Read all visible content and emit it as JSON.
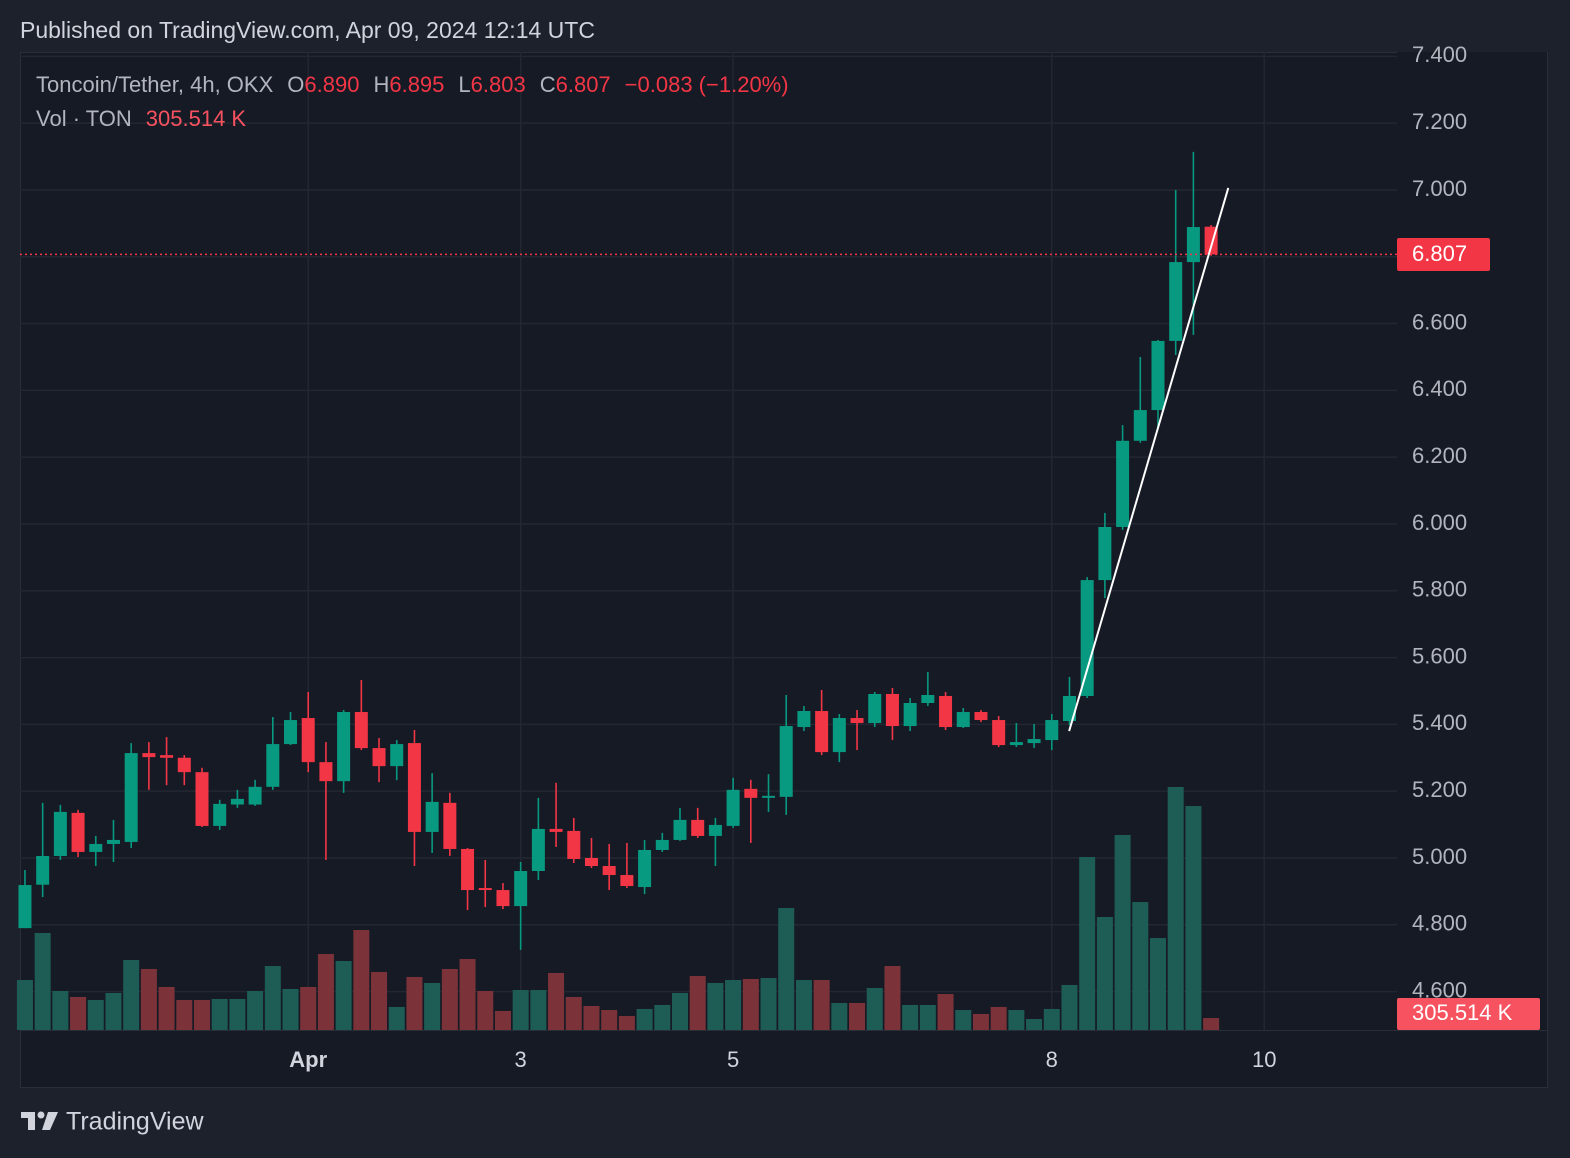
{
  "header": {
    "published": "Published on TradingView.com, Apr 09, 2024 12:14 UTC",
    "symbol": "Toncoin/Tether, 4h, OKX",
    "fields": [
      {
        "key": "O",
        "value": "6.890"
      },
      {
        "key": "H",
        "value": "6.895"
      },
      {
        "key": "L",
        "value": "6.803"
      },
      {
        "key": "C",
        "value": "6.807"
      }
    ],
    "change": "−0.083 (−1.20%)",
    "volume_label": "Vol · TON",
    "volume_value": "305.514 K"
  },
  "footer": {
    "brand": "TradingView"
  },
  "chart_data": {
    "type": "candlestick",
    "up_color": "#089981",
    "down_color": "#f23645",
    "volume_up_color": "#1d5d55",
    "volume_down_color": "#7b3339",
    "grid": true,
    "open": [
      4.79,
      4.92,
      5.006,
      5.135,
      5.018,
      5.042,
      5.048,
      5.314,
      5.308,
      5.3,
      5.257,
      5.096,
      5.16,
      5.16,
      5.213,
      5.341,
      5.419,
      5.287,
      5.23,
      5.437,
      5.329,
      5.275,
      5.344,
      5.078,
      5.165,
      5.027,
      4.91,
      4.904,
      4.856,
      4.961,
      5.087,
      5.081,
      5.0,
      4.976,
      4.949,
      4.913,
      5.024,
      5.054,
      5.114,
      5.066,
      5.096,
      5.207,
      5.18,
      5.183,
      5.392,
      5.44,
      5.317,
      5.419,
      5.404,
      5.491,
      5.395,
      5.464,
      5.485,
      5.392,
      5.437,
      5.413,
      5.338,
      5.344,
      5.353,
      5.41,
      5.485,
      5.832,
      5.991,
      6.249,
      6.341,
      6.548,
      6.784,
      6.89
    ],
    "high": [
      4.964,
      5.165,
      5.159,
      5.144,
      5.066,
      5.114,
      5.344,
      5.347,
      5.362,
      5.308,
      5.27,
      5.174,
      5.204,
      5.234,
      5.422,
      5.437,
      5.497,
      5.347,
      5.443,
      5.533,
      5.359,
      5.353,
      5.383,
      5.254,
      5.195,
      5.03,
      4.994,
      4.925,
      4.988,
      5.18,
      5.225,
      5.12,
      5.06,
      5.042,
      5.045,
      5.054,
      5.075,
      5.15,
      5.15,
      5.12,
      5.24,
      5.234,
      5.251,
      5.488,
      5.455,
      5.503,
      5.431,
      5.443,
      5.497,
      5.509,
      5.479,
      5.557,
      5.497,
      5.449,
      5.443,
      5.425,
      5.404,
      5.401,
      5.431,
      5.542,
      5.841,
      6.033,
      6.296,
      6.5,
      6.551,
      7.0,
      7.114,
      6.895
    ],
    "low": [
      4.79,
      4.883,
      4.994,
      5.003,
      4.976,
      4.988,
      5.03,
      5.204,
      5.218,
      5.218,
      5.093,
      5.084,
      5.15,
      5.156,
      5.204,
      5.338,
      5.257,
      4.994,
      5.195,
      5.323,
      5.227,
      5.233,
      4.976,
      5.015,
      5.006,
      4.844,
      4.853,
      4.847,
      4.725,
      4.934,
      5.033,
      4.985,
      4.97,
      4.904,
      4.91,
      4.892,
      5.018,
      5.051,
      5.06,
      4.976,
      5.09,
      5.045,
      5.138,
      5.129,
      5.38,
      5.308,
      5.287,
      5.323,
      5.392,
      5.353,
      5.38,
      5.455,
      5.383,
      5.389,
      5.407,
      5.332,
      5.332,
      5.329,
      5.323,
      5.398,
      5.479,
      5.778,
      5.982,
      6.243,
      6.29,
      6.506,
      6.566,
      6.803
    ],
    "close": [
      4.919,
      5.006,
      5.138,
      5.018,
      5.042,
      5.054,
      5.314,
      5.302,
      5.3,
      5.257,
      5.096,
      5.162,
      5.177,
      5.213,
      5.341,
      5.413,
      5.287,
      5.23,
      5.437,
      5.329,
      5.275,
      5.341,
      5.078,
      5.168,
      5.027,
      4.904,
      4.904,
      4.856,
      4.961,
      5.087,
      5.078,
      4.997,
      4.976,
      4.949,
      4.916,
      5.024,
      5.054,
      5.114,
      5.066,
      5.099,
      5.204,
      5.18,
      5.186,
      5.395,
      5.44,
      5.317,
      5.419,
      5.404,
      5.491,
      5.395,
      5.464,
      5.488,
      5.392,
      5.437,
      5.413,
      5.338,
      5.347,
      5.356,
      5.413,
      5.485,
      5.832,
      5.991,
      6.249,
      6.341,
      6.548,
      6.784,
      6.889,
      6.807
    ],
    "volume": [
      1275,
      2474,
      995,
      842,
      765,
      944,
      1785,
      1556,
      1097,
      765,
      765,
      791,
      791,
      995,
      1632,
      1046,
      1097,
      1938,
      1760,
      2550,
      1479,
      587,
      1352,
      1199,
      1556,
      1811,
      995,
      485,
      1020,
      1020,
      1454,
      842,
      612,
      510,
      357,
      536,
      638,
      944,
      1377,
      1199,
      1275,
      1301,
      1326,
      3111,
      1275,
      1275,
      689,
      689,
      1071,
      1632,
      638,
      638,
      918,
      510,
      408,
      587,
      510,
      281,
      536,
      1148,
      4412,
      2882,
      4973,
      3264,
      2346,
      6197,
      5712,
      305.514
    ],
    "trend_line": {
      "x": [
        58.98,
        67.97
      ],
      "y": [
        5.38,
        7.006
      ]
    },
    "xlim": [
      -0.28,
      77.5
    ],
    "xticks": [
      {
        "value": 16,
        "label": "Apr"
      },
      {
        "value": 28,
        "label": "3"
      },
      {
        "value": 40,
        "label": "5"
      },
      {
        "value": 58,
        "label": "8"
      },
      {
        "value": 70,
        "label": "10"
      }
    ],
    "ylim": [
      4.485,
      7.413
    ],
    "yticks": [
      {
        "value": 4.6,
        "label": "4.600"
      },
      {
        "value": 4.8,
        "label": "4.800"
      },
      {
        "value": 5.0,
        "label": "5.000"
      },
      {
        "value": 5.2,
        "label": "5.200"
      },
      {
        "value": 5.4,
        "label": "5.400"
      },
      {
        "value": 5.6,
        "label": "5.600"
      },
      {
        "value": 5.8,
        "label": "5.800"
      },
      {
        "value": 6.0,
        "label": "6.000"
      },
      {
        "value": 6.2,
        "label": "6.200"
      },
      {
        "value": 6.4,
        "label": "6.400"
      },
      {
        "value": 6.6,
        "label": "6.600"
      },
      {
        "value": 6.8,
        "label": "6.800"
      },
      {
        "value": 7.0,
        "label": "7.000"
      },
      {
        "value": 7.2,
        "label": "7.200"
      },
      {
        "value": 7.4,
        "label": "7.400"
      }
    ]
  }
}
